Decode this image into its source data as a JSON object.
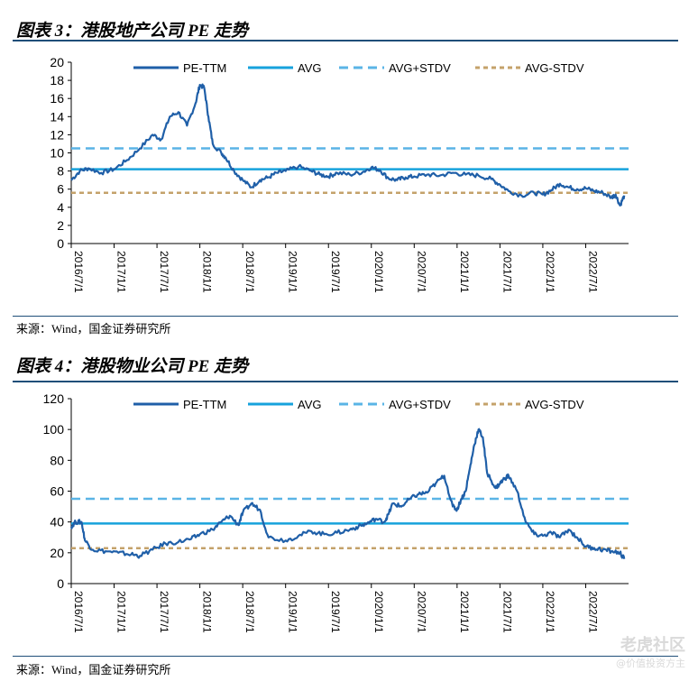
{
  "figure1": {
    "title": "图表 3：港股地产公司 PE 走势",
    "source": "来源：Wind，国金证券研究所"
  },
  "figure2": {
    "title": "图表 4：港股物业公司 PE 走势",
    "source": "来源：Wind，国金证券研究所"
  },
  "watermark": {
    "line1": "老虎社区",
    "line2": "@价值投资方主"
  },
  "colors": {
    "pe": "#1f5fa8",
    "avg": "#17a2dc",
    "upper": "#5ab4e6",
    "lower": "#c4a26a",
    "rule": "#1f4e79"
  },
  "chart_data": [
    {
      "type": "line",
      "title": "图表 3：港股地产公司 PE 走势",
      "ylim": [
        0,
        20
      ],
      "yticks": [
        0,
        2,
        4,
        6,
        8,
        10,
        12,
        14,
        16,
        18,
        20
      ],
      "xlim": [
        2016.5,
        2023.0
      ],
      "xtick_labels": [
        "2016/7/1",
        "2017/1/1",
        "2017/7/1",
        "2018/1/1",
        "2018/7/1",
        "2019/1/1",
        "2019/7/1",
        "2020/1/1",
        "2020/7/1",
        "2021/1/1",
        "2021/7/1",
        "2022/1/1",
        "2022/7/1"
      ],
      "legend": [
        "PE-TTM",
        "AVG",
        "AVG+STDV",
        "AVG-STDV"
      ],
      "series": [
        {
          "name": "PE-TTM",
          "x": [
            2016.5,
            2016.6,
            2016.7,
            2016.85,
            2017.0,
            2017.15,
            2017.3,
            2017.45,
            2017.55,
            2017.65,
            2017.75,
            2017.85,
            2017.95,
            2018.0,
            2018.05,
            2018.1,
            2018.15,
            2018.25,
            2018.3,
            2018.4,
            2018.5,
            2018.6,
            2018.7,
            2018.8,
            2018.9,
            2019.0,
            2019.15,
            2019.3,
            2019.4,
            2019.5,
            2019.6,
            2019.75,
            2019.9,
            2020.0,
            2020.1,
            2020.2,
            2020.3,
            2020.4,
            2020.5,
            2020.65,
            2020.8,
            2020.95,
            2021.1,
            2021.25,
            2021.4,
            2021.5,
            2021.6,
            2021.75,
            2021.9,
            2022.0,
            2022.1,
            2022.2,
            2022.3,
            2022.4,
            2022.5,
            2022.6,
            2022.7,
            2022.8,
            2022.85,
            2022.9,
            2022.95
          ],
          "values": [
            7.0,
            8.0,
            8.3,
            7.8,
            8.2,
            9.2,
            10.5,
            12.0,
            11.5,
            14.0,
            14.5,
            13.0,
            15.5,
            17.5,
            17.2,
            14.0,
            11.0,
            10.0,
            9.5,
            8.0,
            7.0,
            6.2,
            7.0,
            7.3,
            7.8,
            8.0,
            8.5,
            8.0,
            7.6,
            7.4,
            7.8,
            7.6,
            7.9,
            8.4,
            8.1,
            7.2,
            7.0,
            7.3,
            7.4,
            7.6,
            7.5,
            7.8,
            7.6,
            7.5,
            7.1,
            6.5,
            5.8,
            5.3,
            5.6,
            5.4,
            5.9,
            6.6,
            6.2,
            6.0,
            6.1,
            5.8,
            5.6,
            5.1,
            5.4,
            4.2,
            5.3
          ]
        },
        {
          "name": "AVG",
          "value": 8.2
        },
        {
          "name": "AVG+STDV",
          "value": 10.5
        },
        {
          "name": "AVG-STDV",
          "value": 5.6
        }
      ]
    },
    {
      "type": "line",
      "title": "图表 4：港股物业公司 PE 走势",
      "ylim": [
        0,
        120
      ],
      "yticks": [
        0,
        20,
        40,
        60,
        80,
        100,
        120
      ],
      "xlim": [
        2016.5,
        2023.0
      ],
      "xtick_labels": [
        "2016/7/1",
        "2017/1/1",
        "2017/7/1",
        "2018/1/1",
        "2018/7/1",
        "2019/1/1",
        "2019/7/1",
        "2020/1/1",
        "2020/7/1",
        "2021/1/1",
        "2021/7/1",
        "2022/1/1",
        "2022/7/1"
      ],
      "legend": [
        "PE-TTM",
        "AVG",
        "AVG+STDV",
        "AVG-STDV"
      ],
      "series": [
        {
          "name": "PE-TTM",
          "x": [
            2016.5,
            2016.55,
            2016.62,
            2016.66,
            2016.75,
            2016.9,
            2017.05,
            2017.2,
            2017.3,
            2017.45,
            2017.6,
            2017.75,
            2017.9,
            2018.0,
            2018.15,
            2018.25,
            2018.35,
            2018.45,
            2018.5,
            2018.6,
            2018.7,
            2018.8,
            2019.0,
            2019.15,
            2019.3,
            2019.45,
            2019.6,
            2019.75,
            2019.85,
            2019.95,
            2020.05,
            2020.15,
            2020.2,
            2020.25,
            2020.35,
            2020.45,
            2020.55,
            2020.65,
            2020.75,
            2020.85,
            2020.95,
            2021.0,
            2021.05,
            2021.1,
            2021.15,
            2021.2,
            2021.25,
            2021.3,
            2021.35,
            2021.45,
            2021.5,
            2021.55,
            2021.6,
            2021.7,
            2021.8,
            2021.9,
            2022.0,
            2022.1,
            2022.2,
            2022.3,
            2022.4,
            2022.5,
            2022.6,
            2022.7,
            2022.8,
            2022.9,
            2022.95
          ],
          "values": [
            37,
            40,
            40,
            28,
            22,
            21,
            20,
            19,
            18,
            22,
            26,
            27,
            29,
            32,
            35,
            40,
            44,
            38,
            46,
            52,
            48,
            30,
            28,
            31,
            34,
            32,
            33,
            35,
            37,
            39,
            42,
            40,
            45,
            52,
            50,
            55,
            58,
            59,
            65,
            70,
            50,
            48,
            55,
            60,
            75,
            90,
            100,
            95,
            72,
            62,
            65,
            68,
            70,
            60,
            40,
            32,
            31,
            33,
            30,
            35,
            30,
            24,
            23,
            22,
            21,
            20,
            16
          ]
        },
        {
          "name": "AVG",
          "value": 39
        },
        {
          "name": "AVG+STDV",
          "value": 55
        },
        {
          "name": "AVG-STDV",
          "value": 23
        }
      ]
    }
  ]
}
